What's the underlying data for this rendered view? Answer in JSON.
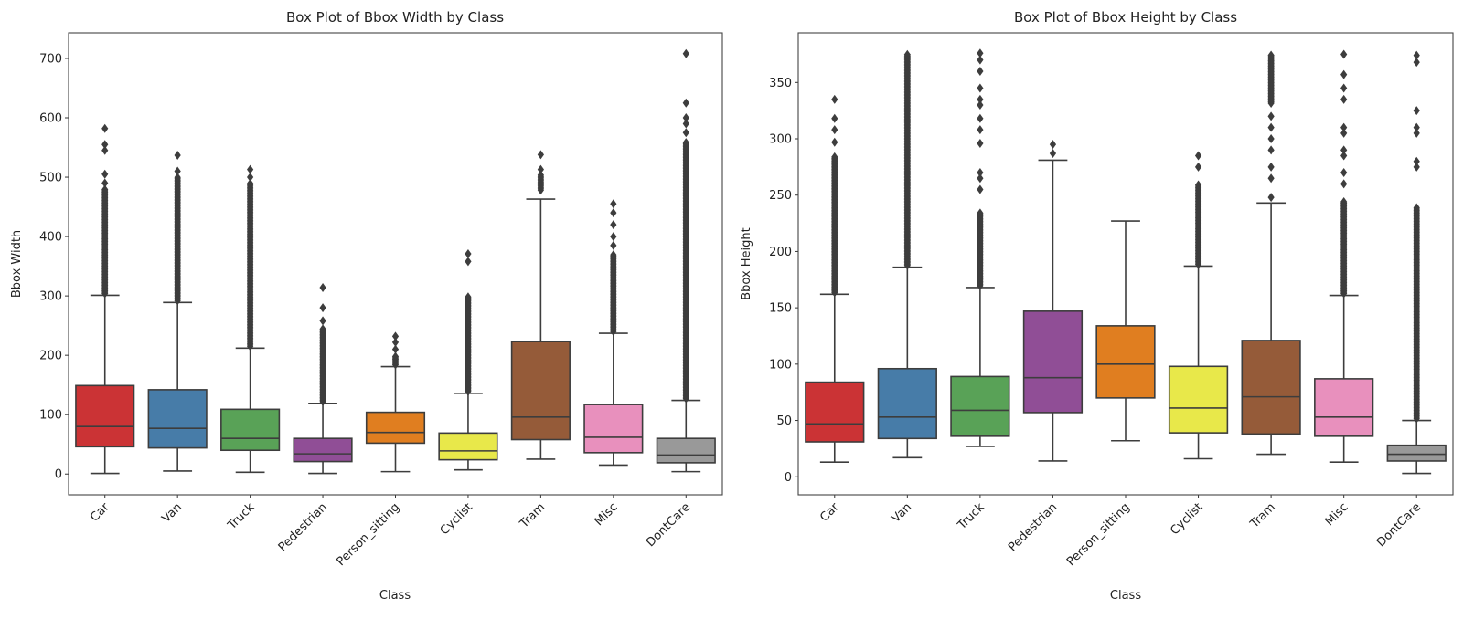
{
  "chart_data": [
    {
      "type": "box",
      "title": "Box Plot of Bbox Width by Class",
      "xlabel": "Class",
      "ylabel": "Bbox Width",
      "ylim": [
        -35,
        743
      ],
      "yticks": [
        0,
        100,
        200,
        300,
        400,
        500,
        600,
        700
      ],
      "grid": false,
      "categories": [
        "Car",
        "Van",
        "Truck",
        "Pedestrian",
        "Person_sitting",
        "Cyclist",
        "Tram",
        "Misc",
        "DontCare"
      ],
      "colors": [
        "#cb3335",
        "#477ca8",
        "#59a257",
        "#904e96",
        "#e07e20",
        "#e8e84a",
        "#955b39",
        "#e890bd",
        "#999999"
      ],
      "boxes": [
        {
          "whislo": 1,
          "q1": 46,
          "med": 80,
          "q3": 149,
          "whishi": 301,
          "outlier_range": [
            301,
            480
          ],
          "outliers": [
            490,
            505,
            545,
            555,
            582
          ]
        },
        {
          "whislo": 5,
          "q1": 44,
          "med": 77,
          "q3": 142,
          "whishi": 289,
          "outlier_range": [
            289,
            500
          ],
          "outliers": [
            510,
            537
          ]
        },
        {
          "whislo": 3,
          "q1": 40,
          "med": 60,
          "q3": 109,
          "whishi": 212,
          "outlier_range": [
            212,
            490
          ],
          "outliers": [
            500,
            513
          ]
        },
        {
          "whislo": 1,
          "q1": 21,
          "med": 34,
          "q3": 60,
          "whishi": 119,
          "outlier_range": [
            119,
            245
          ],
          "outliers": [
            258,
            280,
            314
          ]
        },
        {
          "whislo": 4,
          "q1": 52,
          "med": 70,
          "q3": 104,
          "whishi": 181,
          "outlier_range": [
            181,
            200
          ],
          "outliers": [
            210,
            222,
            232
          ]
        },
        {
          "whislo": 7,
          "q1": 24,
          "med": 39,
          "q3": 69,
          "whishi": 136,
          "outlier_range": [
            136,
            300
          ],
          "outliers": [
            358,
            371
          ]
        },
        {
          "whislo": 25,
          "q1": 58,
          "med": 96,
          "q3": 223,
          "whishi": 463,
          "outlier_range": [
            475,
            505
          ],
          "outliers": [
            513,
            538
          ]
        },
        {
          "whislo": 15,
          "q1": 36,
          "med": 62,
          "q3": 117,
          "whishi": 237,
          "outlier_range": [
            237,
            370
          ],
          "outliers": [
            385,
            400,
            420,
            440,
            455
          ]
        },
        {
          "whislo": 4,
          "q1": 19,
          "med": 32,
          "q3": 60,
          "whishi": 124,
          "outlier_range": [
            124,
            560
          ],
          "outliers": [
            575,
            590,
            600,
            625,
            708
          ]
        }
      ]
    },
    {
      "type": "box",
      "title": "Box Plot of Bbox Height by Class",
      "xlabel": "Class",
      "ylabel": "Bbox Height",
      "ylim": [
        -16,
        394
      ],
      "yticks": [
        0,
        50,
        100,
        150,
        200,
        250,
        300,
        350
      ],
      "grid": false,
      "categories": [
        "Car",
        "Van",
        "Truck",
        "Pedestrian",
        "Person_sitting",
        "Cyclist",
        "Tram",
        "Misc",
        "DontCare"
      ],
      "colors": [
        "#cb3335",
        "#477ca8",
        "#59a257",
        "#904e96",
        "#e07e20",
        "#e8e84a",
        "#955b39",
        "#e890bd",
        "#999999"
      ],
      "boxes": [
        {
          "whislo": 13,
          "q1": 31,
          "med": 47,
          "q3": 84,
          "whishi": 162,
          "outlier_range": [
            162,
            285
          ],
          "outliers": [
            297,
            308,
            318,
            335
          ]
        },
        {
          "whislo": 17,
          "q1": 34,
          "med": 53,
          "q3": 96,
          "whishi": 186,
          "outlier_range": [
            186,
            376
          ],
          "outliers": []
        },
        {
          "whislo": 27,
          "q1": 36,
          "med": 59,
          "q3": 89,
          "whishi": 168,
          "outlier_range": [
            168,
            235
          ],
          "outliers": [
            255,
            265,
            270,
            296,
            308,
            318,
            330,
            335,
            345,
            360,
            370,
            376
          ]
        },
        {
          "whislo": 14,
          "q1": 57,
          "med": 88,
          "q3": 147,
          "whishi": 281,
          "outlier_range": null,
          "outliers": [
            287,
            295
          ]
        },
        {
          "whislo": 32,
          "q1": 70,
          "med": 100,
          "q3": 134,
          "whishi": 227,
          "outlier_range": null,
          "outliers": []
        },
        {
          "whislo": 16,
          "q1": 39,
          "med": 61,
          "q3": 98,
          "whishi": 187,
          "outlier_range": [
            187,
            260
          ],
          "outliers": [
            275,
            285
          ]
        },
        {
          "whislo": 20,
          "q1": 38,
          "med": 71,
          "q3": 121,
          "whishi": 243,
          "outlier_range": [
            330,
            375
          ],
          "outliers": [
            248,
            265,
            275,
            290,
            300,
            310,
            320
          ]
        },
        {
          "whislo": 13,
          "q1": 36,
          "med": 53,
          "q3": 87,
          "whishi": 161,
          "outlier_range": [
            161,
            245
          ],
          "outliers": [
            260,
            270,
            285,
            290,
            305,
            310,
            335,
            345,
            357,
            375
          ]
        },
        {
          "whislo": 3,
          "q1": 14,
          "med": 20,
          "q3": 28,
          "whishi": 50,
          "outlier_range": [
            50,
            240
          ],
          "outliers": [
            275,
            280,
            305,
            310,
            325,
            368,
            374
          ]
        }
      ]
    }
  ]
}
